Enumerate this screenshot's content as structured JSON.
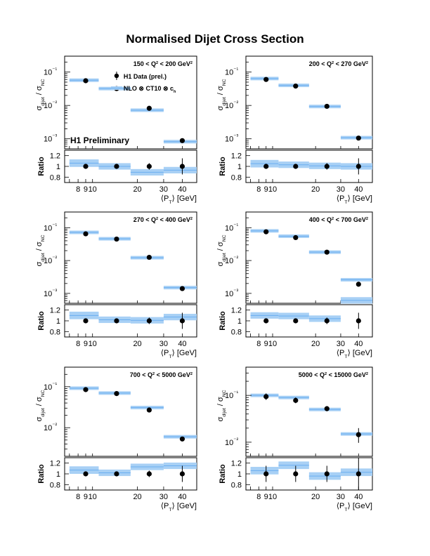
{
  "page": {
    "title": "Normalised Dijet Cross Section"
  },
  "legend": {
    "data_label": "H1 Data (prel.)",
    "theory_label": "NLO ⊗ CT10 ⊗ c",
    "theory_sub": "h"
  },
  "watermark": "H1 Preliminary",
  "axes": {
    "ylabel_main": "σ",
    "ylabel_main_sub1": "dijet",
    "ylabel_main_sep": " / σ",
    "ylabel_main_sub2": "NC",
    "ylabel_ratio": "Ratio",
    "xlabel_open": "⟨P",
    "xlabel_sub": "T",
    "xlabel_close": "⟩ [GeV]",
    "x_ticklabels": [
      "8",
      "9",
      "10",
      "20",
      "30",
      "40"
    ],
    "ratio_ticklabels": [
      "1.2",
      "1",
      "0.8"
    ]
  },
  "colors": {
    "band": "#a8d0f5",
    "line": "#6aaef0",
    "point": "#000000"
  },
  "chart_data": [
    {
      "type": "scatter",
      "title": "150 < Q² < 200 GeV²",
      "x_scale": "log",
      "xlim": [
        6.5,
        50
      ],
      "y_scale": "log",
      "ylim": [
        0.0005,
        0.3
      ],
      "y_ticklabels": [
        "10⁻¹",
        "10⁻²",
        "10⁻³"
      ],
      "bins": [
        [
          7,
          11
        ],
        [
          11,
          18
        ],
        [
          18,
          30
        ],
        [
          30,
          50
        ]
      ],
      "data": {
        "x": [
          9,
          14.5,
          24,
          40
        ],
        "y": [
          0.055,
          0.032,
          0.0082,
          0.00088
        ]
      },
      "nlo": {
        "values": [
          0.057,
          0.032,
          0.0072,
          0.00082
        ]
      },
      "ratio": {
        "ylim": [
          0.7,
          1.3
        ],
        "values": [
          1.0,
          1.0,
          1.0,
          1.0
        ],
        "errors": [
          0.03,
          0.03,
          0.06,
          0.15
        ],
        "nlo": [
          1.06,
          1.0,
          0.89,
          0.93
        ],
        "nlo_unc": [
          0.07,
          0.06,
          0.06,
          0.06
        ]
      }
    },
    {
      "type": "scatter",
      "title": "200 < Q² < 270 GeV²",
      "x_scale": "log",
      "xlim": [
        6.5,
        50
      ],
      "y_scale": "log",
      "ylim": [
        0.0005,
        0.3
      ],
      "y_ticklabels": [
        "10⁻¹",
        "10⁻²",
        "10⁻³"
      ],
      "bins": [
        [
          7,
          11
        ],
        [
          11,
          18
        ],
        [
          18,
          30
        ],
        [
          30,
          50
        ]
      ],
      "data": {
        "x": [
          9,
          14.5,
          24,
          40
        ],
        "y": [
          0.06,
          0.038,
          0.0094,
          0.00105
        ]
      },
      "nlo": {
        "values": [
          0.064,
          0.04,
          0.0093,
          0.00108
        ]
      },
      "ratio": {
        "ylim": [
          0.7,
          1.3
        ],
        "values": [
          1.0,
          1.0,
          1.0,
          1.0
        ],
        "errors": [
          0.03,
          0.03,
          0.06,
          0.15
        ],
        "nlo": [
          1.05,
          1.03,
          1.01,
          1.0
        ],
        "nlo_unc": [
          0.07,
          0.06,
          0.06,
          0.06
        ]
      }
    },
    {
      "type": "scatter",
      "title": "270 < Q² < 400 GeV²",
      "x_scale": "log",
      "xlim": [
        6.5,
        50
      ],
      "y_scale": "log",
      "ylim": [
        0.0005,
        0.3
      ],
      "y_ticklabels": [
        "10⁻¹",
        "10⁻²",
        "10⁻³"
      ],
      "bins": [
        [
          7,
          11
        ],
        [
          11,
          18
        ],
        [
          18,
          30
        ],
        [
          30,
          50
        ]
      ],
      "data": {
        "x": [
          9,
          14.5,
          24,
          40
        ],
        "y": [
          0.065,
          0.045,
          0.0125,
          0.0014
        ]
      },
      "nlo": {
        "values": [
          0.072,
          0.046,
          0.0122,
          0.0015
        ]
      },
      "ratio": {
        "ylim": [
          0.7,
          1.3
        ],
        "values": [
          1.0,
          1.0,
          1.0,
          1.0
        ],
        "errors": [
          0.03,
          0.03,
          0.06,
          0.15
        ],
        "nlo": [
          1.1,
          1.02,
          1.01,
          1.07
        ],
        "nlo_unc": [
          0.07,
          0.06,
          0.06,
          0.06
        ]
      }
    },
    {
      "type": "scatter",
      "title": "400 < Q² < 700 GeV²",
      "x_scale": "log",
      "xlim": [
        6.5,
        50
      ],
      "y_scale": "log",
      "ylim": [
        0.0005,
        0.3
      ],
      "y_ticklabels": [
        "10⁻¹",
        "10⁻²",
        "10⁻³"
      ],
      "bins": [
        [
          7,
          11
        ],
        [
          11,
          18
        ],
        [
          18,
          30
        ],
        [
          30,
          50
        ]
      ],
      "data": {
        "x": [
          9,
          14.5,
          24,
          40
        ],
        "y": [
          0.075,
          0.05,
          0.018,
          0.0019
        ]
      },
      "nlo": {
        "values": [
          0.08,
          0.055,
          0.018,
          0.0026
        ]
      },
      "ratio": {
        "ylim": [
          0.7,
          1.3
        ],
        "values": [
          1.0,
          1.0,
          1.0,
          1.0
        ],
        "errors": [
          0.03,
          0.03,
          0.06,
          0.15
        ],
        "nlo": [
          1.1,
          1.09,
          1.04,
          1.38
        ],
        "nlo_unc": [
          0.06,
          0.06,
          0.06,
          0.06
        ]
      }
    },
    {
      "type": "scatter",
      "title": "700 < Q² < 5000 GeV²",
      "x_scale": "log",
      "xlim": [
        6.5,
        50
      ],
      "y_scale": "log",
      "ylim": [
        0.002,
        0.3
      ],
      "y_ticklabels": [
        "10⁻¹",
        "10⁻²"
      ],
      "bins": [
        [
          7,
          11
        ],
        [
          11,
          18
        ],
        [
          18,
          30
        ],
        [
          30,
          50
        ]
      ],
      "data": {
        "x": [
          9,
          14.5,
          24,
          40
        ],
        "y": [
          0.085,
          0.068,
          0.027,
          0.0053
        ]
      },
      "nlo": {
        "values": [
          0.092,
          0.07,
          0.031,
          0.006
        ]
      },
      "ratio": {
        "ylim": [
          0.7,
          1.3
        ],
        "values": [
          1.0,
          1.0,
          1.0,
          1.0
        ],
        "errors": [
          0.03,
          0.03,
          0.06,
          0.15
        ],
        "nlo": [
          1.07,
          1.02,
          1.13,
          1.15
        ],
        "nlo_unc": [
          0.07,
          0.06,
          0.06,
          0.06
        ]
      }
    },
    {
      "type": "scatter",
      "title": "5000 < Q² < 15000 GeV²",
      "x_scale": "log",
      "xlim": [
        6.5,
        50
      ],
      "y_scale": "log",
      "ylim": [
        0.005,
        0.4
      ],
      "y_ticklabels": [
        "10⁻¹",
        "10⁻²"
      ],
      "bins": [
        [
          7,
          11
        ],
        [
          11,
          18
        ],
        [
          18,
          30
        ],
        [
          30,
          50
        ]
      ],
      "data": {
        "x": [
          9,
          14.5,
          24,
          40
        ],
        "y": [
          0.094,
          0.078,
          0.052,
          0.0145
        ]
      },
      "data_err": {
        "lo": [
          0.08,
          0.068,
          0.046,
          0.0097
        ],
        "hi": [
          0.11,
          0.09,
          0.059,
          0.02
        ]
      },
      "nlo": {
        "values": [
          0.1,
          0.09,
          0.05,
          0.015
        ]
      },
      "ratio": {
        "ylim": [
          0.7,
          1.3
        ],
        "values": [
          1.0,
          1.0,
          1.0,
          1.0
        ],
        "errors": [
          0.15,
          0.15,
          0.15,
          0.45
        ],
        "nlo": [
          1.06,
          1.16,
          0.96,
          1.03
        ],
        "nlo_unc": [
          0.07,
          0.07,
          0.07,
          0.07
        ]
      }
    }
  ]
}
